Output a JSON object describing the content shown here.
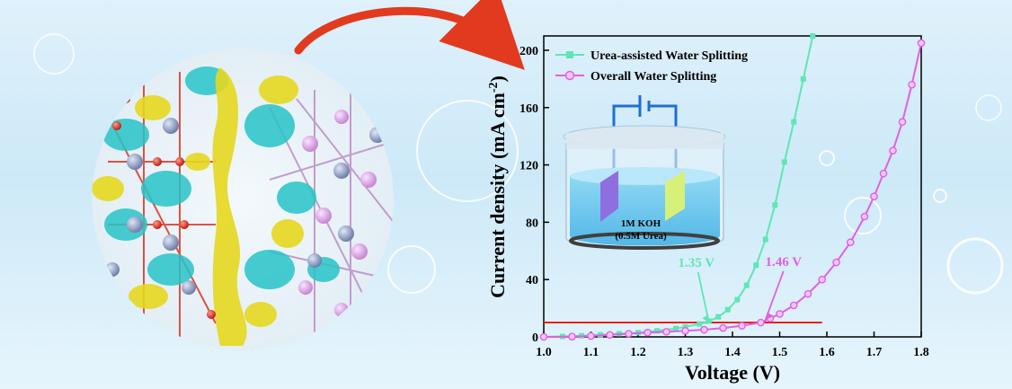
{
  "colors": {
    "urea_series": "#5fe6b4",
    "overall_series": "#e060e6",
    "threshold_line": "#e8201a",
    "arrow": "#e23a1e",
    "charge_cyan": "#27c4c8",
    "charge_yellow": "#e6d81e",
    "atom_red": "#d82a1a",
    "atom_pink": "#e2a6ea",
    "atom_slate": "#7f8fb8"
  },
  "icons": {
    "cell_diagram": "electrolytic-cell-icon",
    "structure": "charge-density-structure-image",
    "arrow": "curved-arrow-icon"
  },
  "chart_data": {
    "type": "line",
    "xlabel": "Voltage (V)",
    "ylabel_main": "Current density (mA cm",
    "ylabel_sup": "-2",
    "ylabel_close": ")",
    "xlim": [
      1.0,
      1.8
    ],
    "ylim": [
      0,
      210
    ],
    "xticks": [
      "1.0",
      "1.1",
      "1.2",
      "1.3",
      "1.4",
      "1.5",
      "1.6",
      "1.7",
      "1.8"
    ],
    "yticks": [
      "0",
      "40",
      "80",
      "120",
      "160",
      "200"
    ],
    "grid": false,
    "legend_position": "top-left",
    "series": [
      {
        "name": "Urea-assisted Water Splitting",
        "color": "#5fe6b4",
        "marker": "square",
        "points": [
          [
            1.0,
            0
          ],
          [
            1.04,
            0.3
          ],
          [
            1.08,
            0.8
          ],
          [
            1.12,
            1.5
          ],
          [
            1.16,
            2.2
          ],
          [
            1.2,
            3
          ],
          [
            1.24,
            4.2
          ],
          [
            1.28,
            5.8
          ],
          [
            1.3,
            7
          ],
          [
            1.33,
            9
          ],
          [
            1.35,
            11
          ],
          [
            1.37,
            14
          ],
          [
            1.39,
            19
          ],
          [
            1.41,
            26
          ],
          [
            1.43,
            36
          ],
          [
            1.45,
            50
          ],
          [
            1.47,
            68
          ],
          [
            1.49,
            92
          ],
          [
            1.51,
            122
          ],
          [
            1.53,
            150
          ],
          [
            1.55,
            180
          ],
          [
            1.57,
            210
          ]
        ]
      },
      {
        "name": "Overall Water Splitting",
        "color": "#e060e6",
        "marker": "circle",
        "points": [
          [
            1.0,
            0
          ],
          [
            1.06,
            0.2
          ],
          [
            1.1,
            0.6
          ],
          [
            1.14,
            1.4
          ],
          [
            1.18,
            2.2
          ],
          [
            1.22,
            3
          ],
          [
            1.26,
            3.6
          ],
          [
            1.3,
            4.2
          ],
          [
            1.34,
            5
          ],
          [
            1.38,
            6.2
          ],
          [
            1.42,
            7.8
          ],
          [
            1.46,
            10
          ],
          [
            1.48,
            13
          ],
          [
            1.5,
            16
          ],
          [
            1.53,
            22
          ],
          [
            1.56,
            30
          ],
          [
            1.59,
            40
          ],
          [
            1.62,
            52
          ],
          [
            1.65,
            66
          ],
          [
            1.68,
            84
          ],
          [
            1.7,
            98
          ],
          [
            1.72,
            114
          ],
          [
            1.74,
            130
          ],
          [
            1.76,
            150
          ],
          [
            1.78,
            176
          ],
          [
            1.8,
            205
          ]
        ]
      }
    ],
    "threshold": {
      "y": 10,
      "x_start": 1.0,
      "x_end": 1.59
    },
    "annotations": [
      {
        "text": "1.35 V",
        "color": "#5fe6b4",
        "target": [
          1.35,
          10
        ]
      },
      {
        "text": "1.46 V",
        "color": "#e060e6",
        "target": [
          1.47,
          12
        ]
      }
    ]
  },
  "inset": {
    "electrolyte_line1": "1M KOH",
    "electrolyte_line2": "(0.5M Urea)"
  }
}
